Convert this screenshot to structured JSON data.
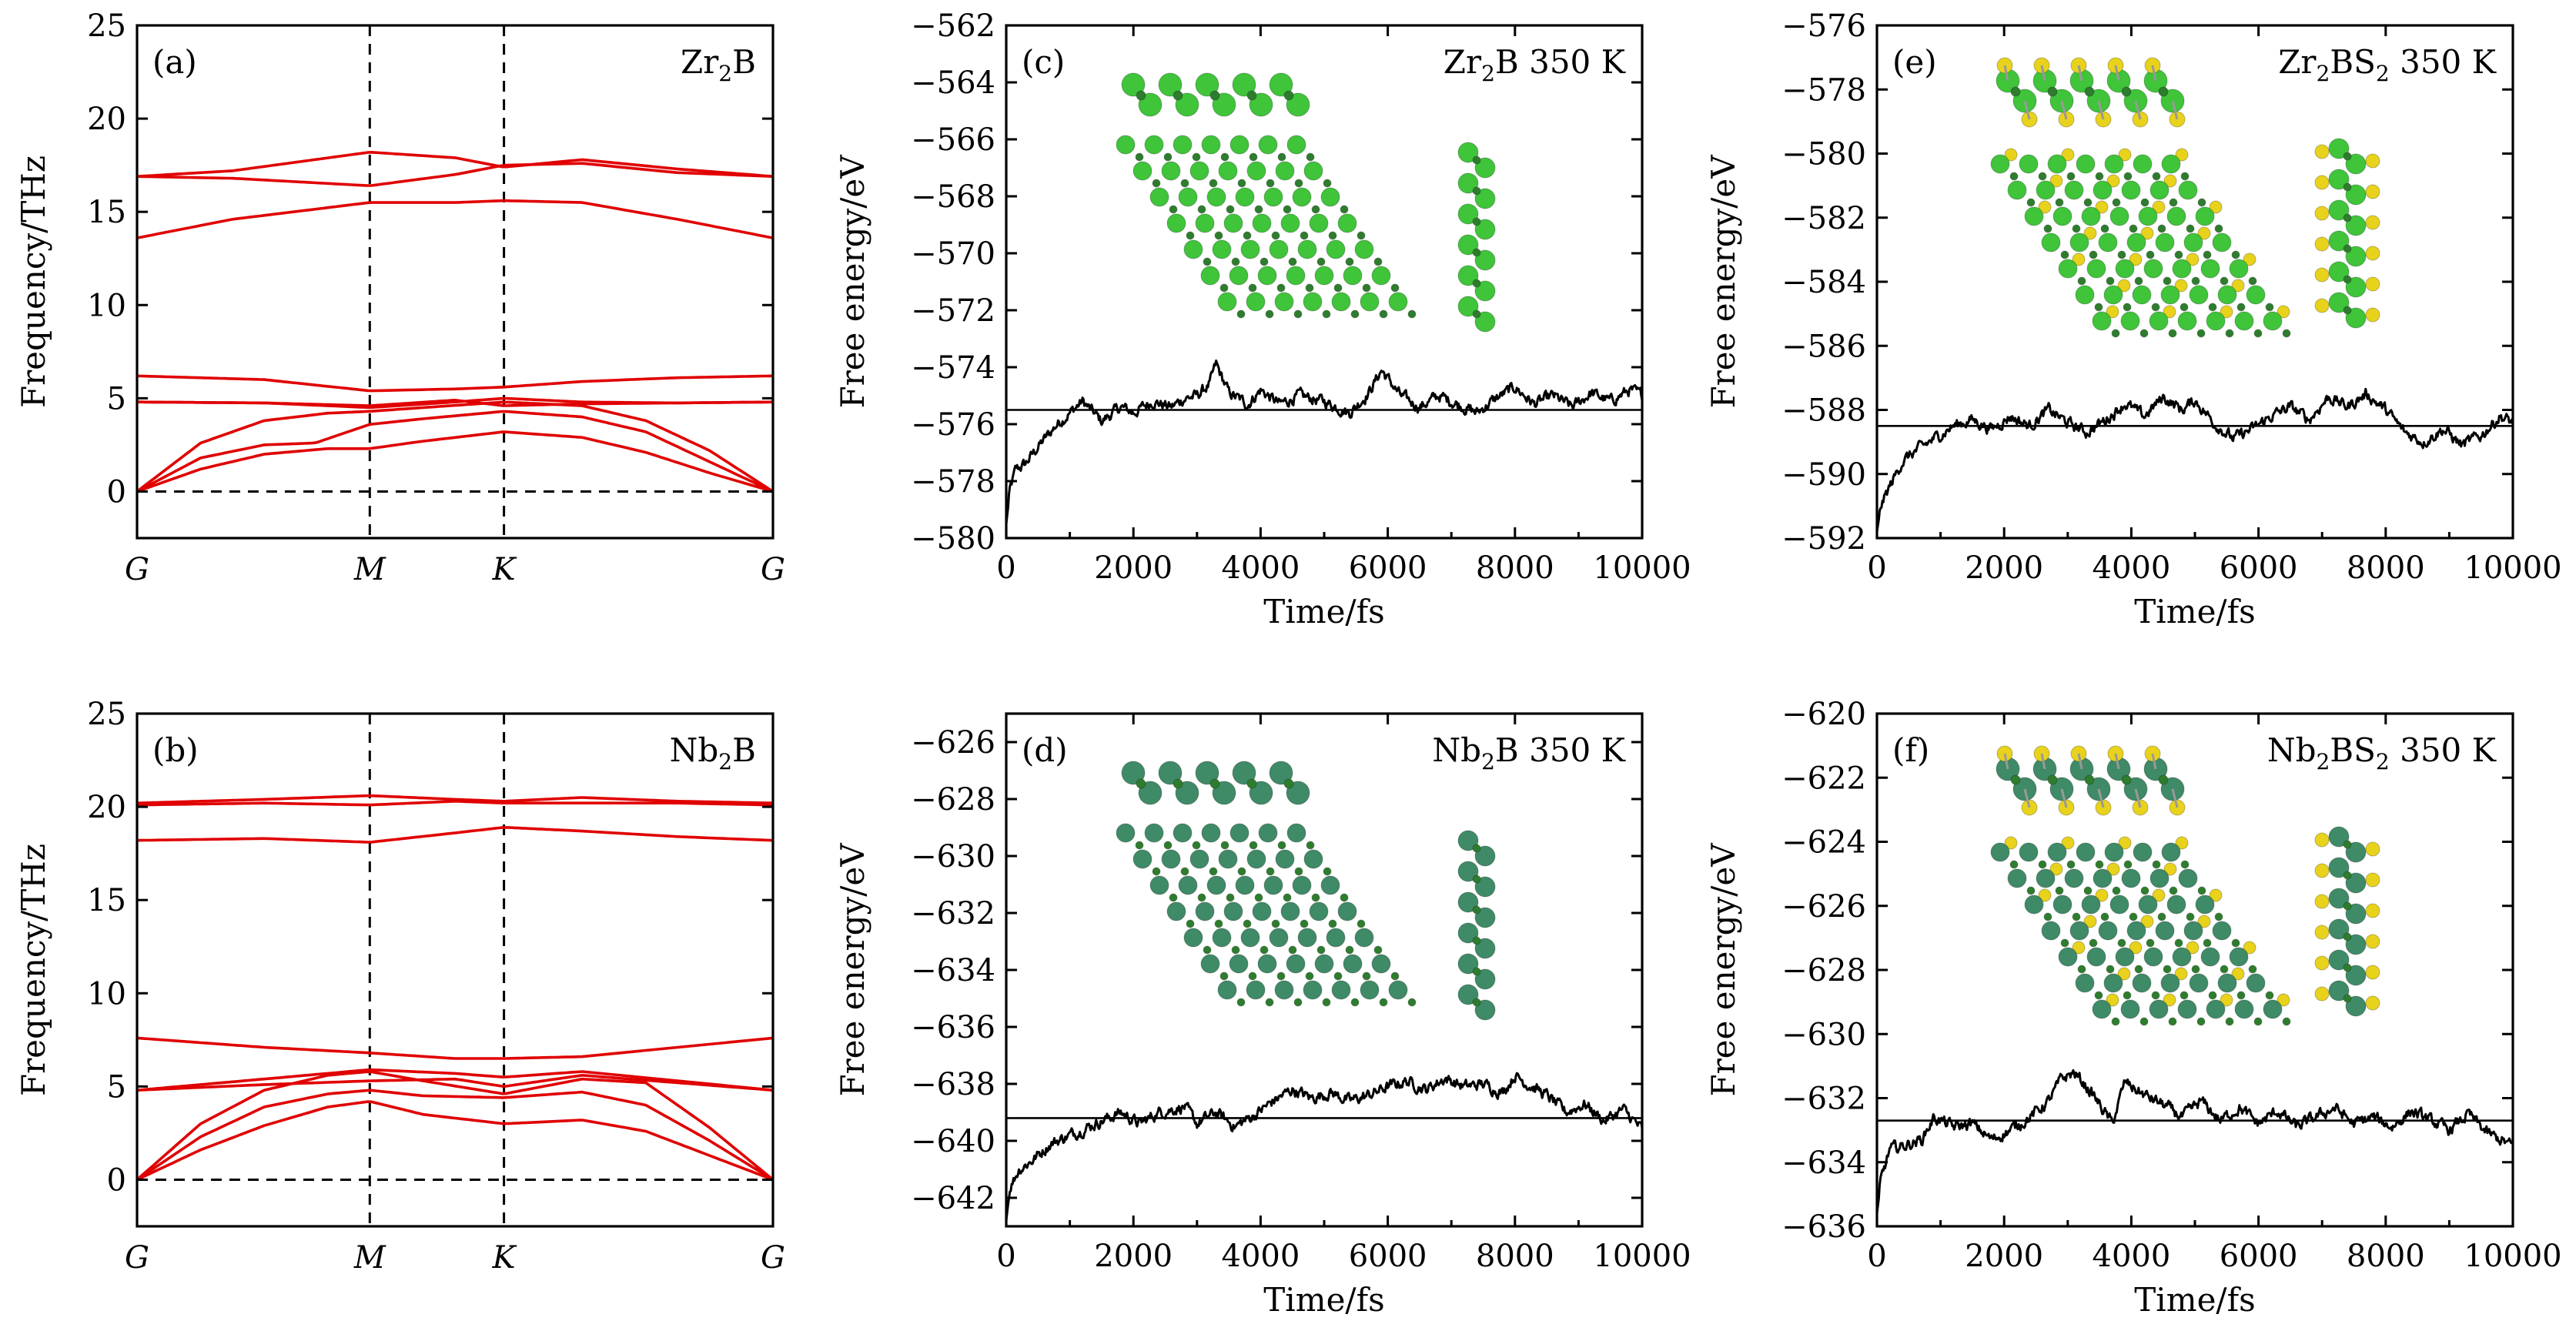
{
  "colors": {
    "band": "#e00000",
    "md": "#000000",
    "zr": "#3fc43a",
    "zr_light": "#7be36f",
    "nb": "#3f8a67",
    "b": "#2e7d2e",
    "s": "#e8d21c"
  },
  "chart_data": [
    {
      "id": "a",
      "type": "line",
      "kind": "phonon",
      "panel_label": "(a)",
      "title": "Zr2B",
      "title_parts": [
        "Zr",
        "2",
        "B"
      ],
      "ylabel": "Frequency/THz",
      "ylim": [
        -2.5,
        25
      ],
      "yticks": [
        "0",
        "5",
        "10",
        "15",
        "20",
        "25"
      ],
      "ytick_values": [
        0,
        5,
        10,
        15,
        20,
        25
      ],
      "kpoints": [
        "G",
        "M",
        "K",
        "G"
      ],
      "kpos": [
        0,
        0.366,
        0.577,
        1.0
      ],
      "zero_line": 0,
      "series": [
        {
          "name": "b1",
          "x": [
            0,
            0.1,
            0.2,
            0.3,
            0.366,
            0.45,
            0.577,
            0.7,
            0.8,
            0.9,
            1.0
          ],
          "values": [
            0,
            1.2,
            2.0,
            2.3,
            2.3,
            2.7,
            3.2,
            2.9,
            2.1,
            1.0,
            0
          ]
        },
        {
          "name": "b2",
          "x": [
            0,
            0.1,
            0.2,
            0.28,
            0.366,
            0.45,
            0.577,
            0.7,
            0.8,
            0.9,
            1.0
          ],
          "values": [
            0,
            1.8,
            2.5,
            2.6,
            3.6,
            3.9,
            4.3,
            4.0,
            3.2,
            1.6,
            0
          ]
        },
        {
          "name": "b3",
          "x": [
            0,
            0.1,
            0.2,
            0.3,
            0.366,
            0.45,
            0.577,
            0.7,
            0.8,
            0.9,
            1.0
          ],
          "values": [
            0,
            2.6,
            3.8,
            4.2,
            4.3,
            4.5,
            4.8,
            4.6,
            3.8,
            2.2,
            0
          ]
        },
        {
          "name": "b4",
          "x": [
            0,
            0.2,
            0.366,
            0.5,
            0.577,
            0.7,
            0.85,
            1.0
          ],
          "values": [
            4.8,
            4.75,
            4.6,
            4.9,
            4.6,
            4.7,
            4.75,
            4.8
          ]
        },
        {
          "name": "b5",
          "x": [
            0,
            0.2,
            0.366,
            0.5,
            0.577,
            0.7,
            0.85,
            1.0
          ],
          "values": [
            4.8,
            4.75,
            4.5,
            4.8,
            5.0,
            4.8,
            4.75,
            4.8
          ]
        },
        {
          "name": "b6",
          "x": [
            0,
            0.2,
            0.366,
            0.5,
            0.577,
            0.7,
            0.85,
            1.0
          ],
          "values": [
            6.2,
            6.0,
            5.4,
            5.5,
            5.6,
            5.9,
            6.1,
            6.2
          ]
        },
        {
          "name": "b7",
          "x": [
            0,
            0.15,
            0.366,
            0.5,
            0.577,
            0.7,
            0.85,
            1.0
          ],
          "values": [
            13.6,
            14.6,
            15.5,
            15.5,
            15.6,
            15.5,
            14.6,
            13.6
          ]
        },
        {
          "name": "b8",
          "x": [
            0,
            0.15,
            0.366,
            0.5,
            0.577,
            0.7,
            0.85,
            1.0
          ],
          "values": [
            16.9,
            16.8,
            16.4,
            17.0,
            17.5,
            17.6,
            17.1,
            16.9
          ]
        },
        {
          "name": "b9",
          "x": [
            0,
            0.15,
            0.366,
            0.5,
            0.577,
            0.7,
            0.85,
            1.0
          ],
          "values": [
            16.9,
            17.2,
            18.2,
            17.9,
            17.4,
            17.8,
            17.3,
            16.9
          ]
        }
      ]
    },
    {
      "id": "b",
      "type": "line",
      "kind": "phonon",
      "panel_label": "(b)",
      "title": "Nb2B",
      "title_parts": [
        "Nb",
        "2",
        "B"
      ],
      "ylabel": "Frequency/THz",
      "ylim": [
        -2.5,
        25
      ],
      "yticks": [
        "0",
        "5",
        "10",
        "15",
        "20",
        "25"
      ],
      "ytick_values": [
        0,
        5,
        10,
        15,
        20,
        25
      ],
      "kpoints": [
        "G",
        "M",
        "K",
        "G"
      ],
      "kpos": [
        0,
        0.366,
        0.577,
        1.0
      ],
      "zero_line": 0,
      "series": [
        {
          "name": "b1",
          "x": [
            0,
            0.1,
            0.2,
            0.3,
            0.366,
            0.45,
            0.577,
            0.7,
            0.8,
            0.9,
            1.0
          ],
          "values": [
            0,
            1.6,
            2.9,
            3.9,
            4.2,
            3.5,
            3.0,
            3.2,
            2.6,
            1.3,
            0
          ]
        },
        {
          "name": "b2",
          "x": [
            0,
            0.1,
            0.2,
            0.3,
            0.366,
            0.45,
            0.577,
            0.7,
            0.8,
            0.9,
            1.0
          ],
          "values": [
            0,
            2.3,
            3.9,
            4.6,
            4.8,
            4.5,
            4.4,
            4.7,
            4.0,
            2.1,
            0
          ]
        },
        {
          "name": "b3",
          "x": [
            0,
            0.1,
            0.2,
            0.3,
            0.366,
            0.45,
            0.577,
            0.7,
            0.8,
            0.9,
            1.0
          ],
          "values": [
            0,
            3.0,
            4.8,
            5.6,
            5.8,
            5.3,
            4.6,
            5.4,
            5.2,
            2.8,
            0
          ]
        },
        {
          "name": "b4",
          "x": [
            0,
            0.2,
            0.366,
            0.5,
            0.577,
            0.7,
            0.85,
            1.0
          ],
          "values": [
            4.8,
            5.1,
            5.3,
            5.4,
            5.0,
            5.6,
            5.2,
            4.8
          ]
        },
        {
          "name": "b5",
          "x": [
            0,
            0.2,
            0.366,
            0.5,
            0.577,
            0.7,
            0.85,
            1.0
          ],
          "values": [
            4.8,
            5.4,
            5.9,
            5.7,
            5.5,
            5.8,
            5.3,
            4.8
          ]
        },
        {
          "name": "b6",
          "x": [
            0,
            0.2,
            0.366,
            0.5,
            0.577,
            0.7,
            0.85,
            1.0
          ],
          "values": [
            7.6,
            7.1,
            6.8,
            6.5,
            6.5,
            6.6,
            7.1,
            7.6
          ]
        },
        {
          "name": "b7",
          "x": [
            0,
            0.2,
            0.366,
            0.5,
            0.577,
            0.7,
            0.85,
            1.0
          ],
          "values": [
            18.2,
            18.3,
            18.1,
            18.6,
            18.9,
            18.7,
            18.4,
            18.2
          ]
        },
        {
          "name": "b8",
          "x": [
            0,
            0.2,
            0.366,
            0.5,
            0.577,
            0.7,
            0.85,
            1.0
          ],
          "values": [
            20.1,
            20.2,
            20.1,
            20.3,
            20.2,
            20.2,
            20.2,
            20.1
          ]
        },
        {
          "name": "b9",
          "x": [
            0,
            0.2,
            0.366,
            0.5,
            0.577,
            0.7,
            0.85,
            1.0
          ],
          "values": [
            20.2,
            20.4,
            20.6,
            20.4,
            20.3,
            20.5,
            20.3,
            20.2
          ]
        }
      ]
    },
    {
      "id": "c",
      "type": "line",
      "kind": "md",
      "panel_label": "(c)",
      "title": "Zr2B 350 K",
      "title_parts": [
        "Zr",
        "2",
        "B 350 K"
      ],
      "xlabel": "Time/fs",
      "ylabel": "Free energy/eV",
      "xlim": [
        0,
        10000
      ],
      "xticks": [
        "0",
        "2000",
        "4000",
        "6000",
        "8000",
        "10000"
      ],
      "xtick_values": [
        0,
        2000,
        4000,
        6000,
        8000,
        10000
      ],
      "ylim": [
        -580,
        -562
      ],
      "yticks": [
        "−580",
        "−578",
        "−576",
        "−574",
        "−572",
        "−570",
        "−568",
        "−566",
        "−564",
        "−562"
      ],
      "ytick_values": [
        -580,
        -578,
        -576,
        -574,
        -572,
        -570,
        -568,
        -566,
        -564,
        -562
      ],
      "reference": -575.5,
      "structure": "Zr2B",
      "series": [
        {
          "name": "free-energy",
          "x": [
            0,
            60,
            150,
            300,
            500,
            800,
            1000,
            1200,
            1500,
            1800,
            2000,
            2300,
            2600,
            2800,
            3000,
            3200,
            3300,
            3500,
            3800,
            4000,
            4300,
            4600,
            5000,
            5400,
            5700,
            5900,
            6200,
            6500,
            6800,
            7100,
            7400,
            7700,
            8000,
            8300,
            8600,
            8900,
            9200,
            9500,
            9800,
            10000
          ],
          "values": [
            -579.5,
            -578.3,
            -577.6,
            -577.4,
            -576.8,
            -576.0,
            -575.6,
            -575.2,
            -575.9,
            -575.4,
            -575.6,
            -575.2,
            -575.4,
            -575.1,
            -575.0,
            -574.6,
            -573.9,
            -574.9,
            -575.3,
            -574.8,
            -575.3,
            -575.0,
            -575.2,
            -575.6,
            -574.9,
            -574.1,
            -575.0,
            -575.4,
            -575.0,
            -575.3,
            -575.6,
            -575.1,
            -574.7,
            -575.3,
            -575.0,
            -575.4,
            -574.9,
            -575.2,
            -574.8,
            -575.0
          ]
        }
      ]
    },
    {
      "id": "d",
      "type": "line",
      "kind": "md",
      "panel_label": "(d)",
      "title": "Nb2B 350 K",
      "title_parts": [
        "Nb",
        "2",
        "B 350 K"
      ],
      "xlabel": "Time/fs",
      "ylabel": "Free energy/eV",
      "xlim": [
        0,
        10000
      ],
      "xticks": [
        "0",
        "2000",
        "4000",
        "6000",
        "8000",
        "10000"
      ],
      "xtick_values": [
        0,
        2000,
        4000,
        6000,
        8000,
        10000
      ],
      "ylim": [
        -643,
        -625
      ],
      "yticks": [
        "−642",
        "−640",
        "−638",
        "−636",
        "−634",
        "−632",
        "−630",
        "−628",
        "−626"
      ],
      "ytick_values": [
        -642,
        -640,
        -638,
        -636,
        -634,
        -632,
        -630,
        -628,
        -626
      ],
      "reference": -639.2,
      "structure": "Nb2B",
      "series": [
        {
          "name": "free-energy",
          "x": [
            0,
            60,
            200,
            400,
            700,
            1000,
            1300,
            1600,
            1800,
            2100,
            2400,
            2800,
            3000,
            3300,
            3600,
            3900,
            4200,
            4500,
            4800,
            5100,
            5400,
            5700,
            6000,
            6300,
            6600,
            6900,
            7200,
            7500,
            7800,
            8000,
            8200,
            8500,
            8800,
            9100,
            9400,
            9700,
            10000
          ],
          "values": [
            -642.8,
            -641.6,
            -641.0,
            -640.7,
            -640.1,
            -639.8,
            -639.5,
            -639.2,
            -639.0,
            -639.4,
            -639.0,
            -638.8,
            -639.4,
            -639.0,
            -639.5,
            -639.1,
            -638.6,
            -638.2,
            -638.5,
            -638.3,
            -638.6,
            -638.4,
            -638.1,
            -637.9,
            -638.2,
            -637.8,
            -638.1,
            -638.0,
            -638.3,
            -637.7,
            -638.0,
            -638.4,
            -639.0,
            -638.7,
            -639.3,
            -638.9,
            -639.6
          ]
        }
      ]
    },
    {
      "id": "e",
      "type": "line",
      "kind": "md",
      "panel_label": "(e)",
      "title": "Zr2BS2 350 K",
      "title_parts": [
        "Zr",
        "2",
        "BS",
        "2",
        " 350 K"
      ],
      "xlabel": "Time/fs",
      "ylabel": "Free energy/eV",
      "xlim": [
        0,
        10000
      ],
      "xticks": [
        "0",
        "2000",
        "4000",
        "6000",
        "8000",
        "10000"
      ],
      "xtick_values": [
        0,
        2000,
        4000,
        6000,
        8000,
        10000
      ],
      "ylim": [
        -592,
        -576
      ],
      "yticks": [
        "−592",
        "−590",
        "−588",
        "−586",
        "−584",
        "−582",
        "−580",
        "−578",
        "−576"
      ],
      "ytick_values": [
        -592,
        -590,
        -588,
        -586,
        -584,
        -582,
        -580,
        -578,
        -576
      ],
      "reference": -588.5,
      "structure": "Zr2BS2",
      "series": [
        {
          "name": "free-energy",
          "x": [
            0,
            60,
            200,
            400,
            600,
            900,
            1200,
            1500,
            1800,
            2100,
            2400,
            2700,
            3000,
            3300,
            3600,
            3900,
            4200,
            4500,
            4800,
            5000,
            5300,
            5600,
            5900,
            6200,
            6500,
            6800,
            7100,
            7400,
            7700,
            8000,
            8300,
            8600,
            8900,
            9200,
            9500,
            9800,
            10000
          ],
          "values": [
            -591.8,
            -591.0,
            -590.4,
            -589.6,
            -589.3,
            -588.9,
            -588.5,
            -588.3,
            -588.6,
            -588.2,
            -588.5,
            -588.0,
            -588.4,
            -588.7,
            -588.3,
            -587.8,
            -588.2,
            -587.6,
            -588.0,
            -587.7,
            -588.4,
            -588.9,
            -588.6,
            -588.2,
            -587.9,
            -588.3,
            -587.6,
            -587.9,
            -587.5,
            -588.0,
            -588.7,
            -589.0,
            -588.6,
            -589.1,
            -588.8,
            -588.2,
            -588.4
          ]
        }
      ]
    },
    {
      "id": "f",
      "type": "line",
      "kind": "md",
      "panel_label": "(f)",
      "title": "Nb2BS2 350 K",
      "title_parts": [
        "Nb",
        "2",
        "BS",
        "2",
        " 350 K"
      ],
      "xlabel": "Time/fs",
      "ylabel": "Free energy/eV",
      "xlim": [
        0,
        10000
      ],
      "xticks": [
        "0",
        "2000",
        "4000",
        "6000",
        "8000",
        "10000"
      ],
      "xtick_values": [
        0,
        2000,
        4000,
        6000,
        8000,
        10000
      ],
      "ylim": [
        -636,
        -620
      ],
      "yticks": [
        "−636",
        "−634",
        "−632",
        "−630",
        "−628",
        "−626",
        "−624",
        "−622",
        "−620"
      ],
      "ytick_values": [
        -636,
        -634,
        -632,
        -630,
        -628,
        -626,
        -624,
        -622,
        -620
      ],
      "reference": -632.7,
      "structure": "Nb2BS2",
      "series": [
        {
          "name": "free-energy",
          "x": [
            0,
            60,
            200,
            400,
            700,
            900,
            1200,
            1500,
            1800,
            2100,
            2400,
            2700,
            2900,
            3100,
            3400,
            3700,
            3900,
            4200,
            4500,
            4800,
            5100,
            5400,
            5700,
            6000,
            6300,
            6600,
            6900,
            7200,
            7500,
            7800,
            8100,
            8400,
            8700,
            9000,
            9300,
            9600,
            10000
          ],
          "values": [
            -635.6,
            -634.6,
            -633.6,
            -633.5,
            -633.3,
            -632.6,
            -632.9,
            -632.8,
            -633.3,
            -633.0,
            -632.6,
            -632.1,
            -631.4,
            -631.2,
            -631.9,
            -632.8,
            -631.5,
            -631.9,
            -632.2,
            -632.6,
            -632.1,
            -632.7,
            -632.3,
            -632.8,
            -632.4,
            -632.9,
            -632.6,
            -632.3,
            -632.8,
            -632.6,
            -632.9,
            -632.4,
            -632.7,
            -633.0,
            -632.5,
            -633.1,
            -633.5
          ]
        }
      ]
    }
  ]
}
